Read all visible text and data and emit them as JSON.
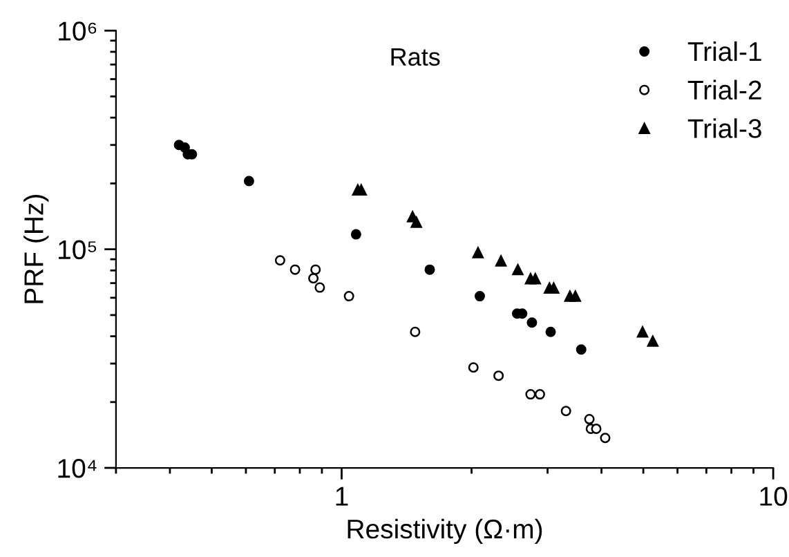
{
  "chart_data": {
    "type": "scatter",
    "xlabel": "Resistivity (Ω·m)",
    "ylabel": "PRF (Hz)",
    "log": "xy",
    "grid": false,
    "legend": "top right",
    "xlim": [
      0.3,
      10
    ],
    "xticks": [
      1,
      10
    ],
    "ylim": [
      10000,
      1000000
    ],
    "yticks": [
      {
        "value": 10000,
        "label": "10⁴"
      },
      {
        "value": 100000,
        "label": "10⁵"
      },
      {
        "value": 1000000,
        "label": "10⁶"
      }
    ],
    "annotations": [
      "Rats"
    ],
    "series": [
      {
        "name": "Trial-1",
        "color": "#000000",
        "marker": "circle",
        "x": [
          0.42,
          0.433,
          0.44,
          0.45,
          0.61,
          1.08,
          1.6,
          2.09,
          2.55,
          2.62,
          2.76,
          3.05,
          3.59
        ],
        "values": [
          300000,
          292000,
          272000,
          272000,
          205000,
          117000,
          80700,
          61000,
          50800,
          50800,
          46200,
          41900,
          34800
        ]
      },
      {
        "name": "Trial-2",
        "color": "#000000",
        "marker": "open circle",
        "x": [
          0.72,
          0.78,
          0.87,
          0.86,
          0.89,
          1.04,
          1.48,
          2.02,
          2.31,
          2.74,
          2.88,
          3.31,
          3.75,
          3.78,
          3.89,
          4.08
        ],
        "values": [
          89000,
          80700,
          80700,
          73600,
          66800,
          61000,
          41900,
          28800,
          26400,
          21700,
          21700,
          18200,
          16700,
          15100,
          15100,
          13700
        ]
      },
      {
        "name": "Trial-3",
        "color": "#000000",
        "marker": "triangle",
        "x": [
          1.09,
          1.11,
          1.46,
          1.49,
          2.07,
          2.34,
          2.56,
          2.74,
          2.81,
          3.03,
          3.1,
          3.38,
          3.48,
          4.98,
          5.26
        ],
        "values": [
          187000,
          187000,
          141000,
          133000,
          96600,
          88500,
          80700,
          73300,
          73300,
          66500,
          66500,
          61000,
          61000,
          41900,
          38000
        ]
      }
    ]
  }
}
